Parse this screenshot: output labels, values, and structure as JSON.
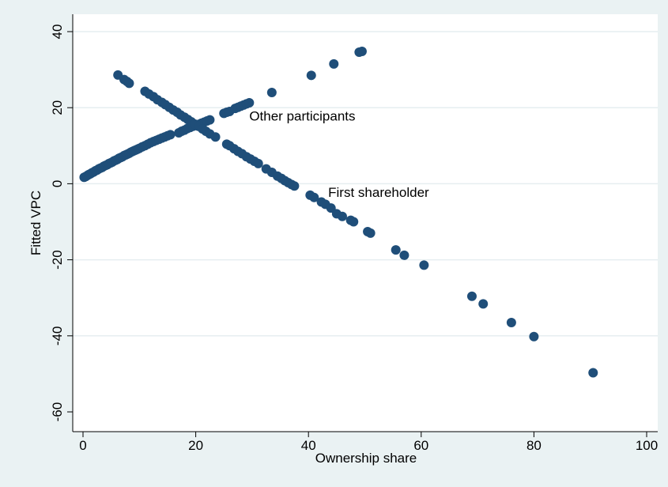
{
  "chart_data": {
    "type": "scatter",
    "xlabel": "Ownership share",
    "ylabel": "Fitted VPC",
    "xlim": [
      0,
      100
    ],
    "ylim": [
      -60,
      40
    ],
    "xticks": [
      0,
      20,
      40,
      60,
      80,
      100
    ],
    "yticks": [
      -60,
      -40,
      -20,
      0,
      20,
      40
    ],
    "xtick_labels": [
      "0",
      "20",
      "40",
      "60",
      "80",
      "100"
    ],
    "ytick_labels": [
      "-60",
      "-40",
      "-20",
      "0",
      "20",
      "40"
    ],
    "grid": "horizontal",
    "marker_color": "#1f4e79",
    "annotations": [
      {
        "text": "Other participants",
        "x": 29.5,
        "y": 17.5
      },
      {
        "text": "First shareholder",
        "x": 43.5,
        "y": -2.5
      }
    ],
    "series": [
      {
        "x": [
          0.2,
          0.5,
          0.8,
          1.0,
          1.3,
          1.6,
          1.9,
          2.2,
          2.5,
          2.8,
          3.1,
          3.4,
          3.7,
          4.0,
          4.3,
          4.6,
          4.9,
          5.2,
          5.5,
          5.8,
          6.1,
          6.4,
          6.7,
          7.0,
          7.3,
          7.6,
          7.9,
          8.2,
          8.5,
          8.8,
          9.1,
          9.4,
          9.7,
          10.0,
          10.5,
          11.0,
          11.5,
          12.0,
          12.5,
          13.0,
          13.5,
          14.0,
          14.5,
          15.0,
          15.5,
          17.0,
          17.5,
          18.0,
          18.5,
          19.0,
          19.5,
          20.0,
          20.5,
          21.0,
          21.5,
          22.0,
          22.5,
          25.0,
          25.5,
          26.0,
          27.0,
          27.5,
          28.0,
          28.5,
          29.0,
          29.5,
          33.5,
          40.5,
          44.5,
          49.0,
          49.5
        ],
        "y": [
          1.7,
          1.9,
          2.2,
          2.4,
          2.6,
          2.9,
          3.1,
          3.4,
          3.6,
          3.9,
          4.1,
          4.3,
          4.6,
          4.8,
          5.0,
          5.3,
          5.5,
          5.7,
          6.0,
          6.2,
          6.4,
          6.7,
          6.9,
          7.1,
          7.4,
          7.6,
          7.8,
          8.0,
          8.3,
          8.5,
          8.7,
          8.9,
          9.1,
          9.3,
          9.7,
          10.0,
          10.4,
          10.8,
          11.1,
          11.4,
          11.7,
          12.0,
          12.3,
          12.6,
          12.9,
          13.4,
          13.8,
          14.1,
          14.5,
          14.8,
          15.1,
          15.3,
          15.6,
          15.9,
          16.2,
          16.5,
          16.8,
          18.5,
          18.8,
          19.0,
          19.8,
          20.1,
          20.4,
          20.7,
          21.0,
          21.3,
          24.0,
          28.5,
          31.5,
          34.6,
          34.8
        ]
      },
      {
        "x": [
          6.2,
          7.3,
          7.8,
          8.2,
          11.0,
          11.7,
          12.5,
          13.2,
          14.0,
          14.6,
          15.3,
          16.0,
          16.7,
          17.3,
          18.0,
          18.6,
          19.2,
          19.8,
          20.5,
          21.2,
          21.8,
          22.5,
          23.5,
          25.5,
          26.0,
          26.8,
          27.5,
          28.2,
          29.0,
          29.7,
          30.4,
          31.1,
          32.5,
          33.5,
          34.5,
          35.2,
          35.8,
          36.4,
          37.0,
          37.5,
          40.3,
          41.0,
          42.3,
          43.0,
          44.0,
          45.0,
          46.0,
          47.5,
          48.0,
          50.5,
          51.0,
          55.5,
          57.0,
          60.5,
          69.0,
          71.0,
          76.0,
          80.0,
          90.5
        ],
        "y": [
          28.6,
          27.4,
          26.9,
          26.4,
          24.3,
          23.6,
          22.9,
          22.1,
          21.4,
          20.8,
          20.1,
          19.4,
          18.8,
          18.1,
          17.5,
          16.9,
          16.3,
          15.7,
          15.1,
          14.4,
          13.8,
          13.1,
          12.3,
          10.4,
          10.0,
          9.2,
          8.5,
          7.9,
          7.1,
          6.5,
          5.9,
          5.3,
          3.9,
          3.0,
          2.0,
          1.4,
          0.8,
          0.3,
          -0.2,
          -0.6,
          -3.0,
          -3.6,
          -4.8,
          -5.4,
          -6.4,
          -7.9,
          -8.6,
          -9.6,
          -10.0,
          -12.6,
          -13.0,
          -17.4,
          -18.8,
          -21.4,
          -29.6,
          -31.6,
          -36.5,
          -40.2,
          -49.7
        ]
      }
    ]
  }
}
